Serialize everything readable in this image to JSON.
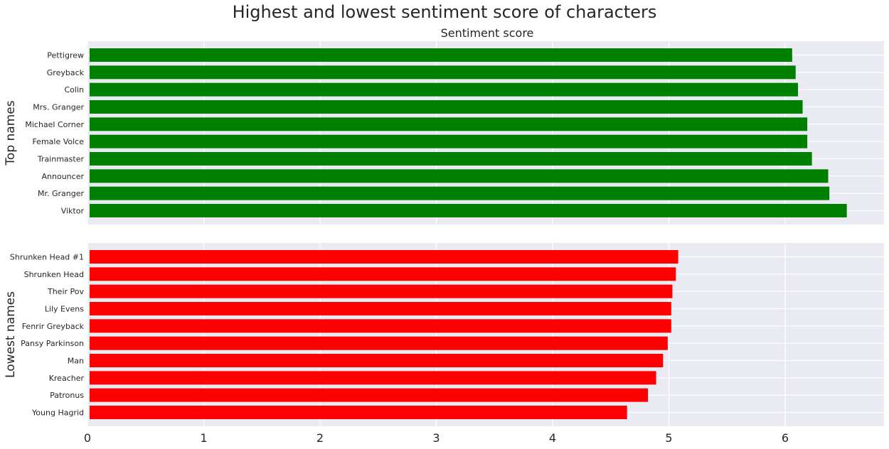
{
  "chart_data": {
    "type": "bar",
    "orientation": "horizontal",
    "title": "Highest and lowest sentiment score of characters",
    "subtitle": "Sentiment score",
    "xlim": [
      0,
      6.85
    ],
    "xticks": [
      0,
      1,
      2,
      3,
      4,
      5,
      6
    ],
    "grid": true,
    "panels": [
      {
        "ylabel": "Top names",
        "color": "#008000",
        "categories": [
          "Pettigrew",
          "Greyback",
          "Colin",
          "Mrs. Granger",
          "Michael Corner",
          "Female Volce",
          "Trainmaster",
          "Announcer",
          "Mr. Granger",
          "Viktor"
        ],
        "values": [
          6.06,
          6.09,
          6.11,
          6.15,
          6.19,
          6.19,
          6.23,
          6.37,
          6.38,
          6.53
        ]
      },
      {
        "ylabel": "Lowest names",
        "color": "#ff0000",
        "categories": [
          "Shrunken Head #1",
          "Shrunken Head",
          "Their Pov",
          "Lily Evens",
          "Fenrir Greyback",
          "Pansy Parkinson",
          "Man",
          "Kreacher",
          "Patronus",
          "Young Hagrid"
        ],
        "values": [
          5.08,
          5.06,
          5.03,
          5.02,
          5.02,
          4.99,
          4.95,
          4.89,
          4.82,
          4.64
        ]
      }
    ]
  }
}
